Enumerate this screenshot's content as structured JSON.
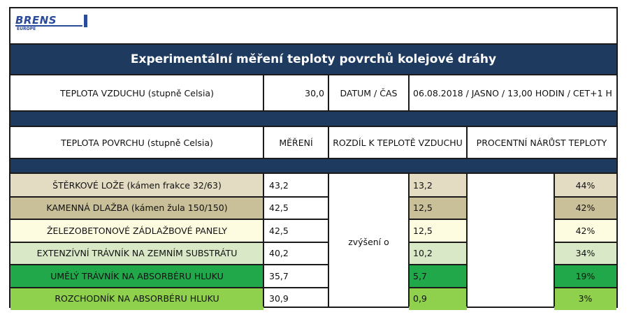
{
  "logo": {
    "brand": "BRENS",
    "sub": "EUROPE"
  },
  "title": "Experimentální měření teploty povrchů kolejové dráhy",
  "info": {
    "air_label": "TEPLOTA VZDUCHU (stupně Celsia)",
    "air_value": "30,0",
    "date_label": "DATUM / ČAS",
    "date_value": "06.08.2018 / JASNO / 13,00 HODIN / CET+1 H"
  },
  "headers": {
    "surface": "TEPLOTA POVRCHU (stupně Celsia)",
    "measure": "MĚŘENÍ",
    "diff": "ROZDÍL K TEPLOTĚ VZDUCHU",
    "percent": "PROCENTNÍ NÁRŮST TEPLOTY"
  },
  "increase_label": "zvýšení o",
  "colors": {
    "navy": "#1e3a5f",
    "row_colors": [
      "#e3dcc2",
      "#c9bf98",
      "#fdfbe0",
      "#d9e8c6",
      "#21a84a",
      "#8fd04c"
    ]
  },
  "rows": [
    {
      "surface": "ŠTĚRKOVÉ LOŽE (kámen frakce 32/63)",
      "measure": "43,2",
      "diff": "13,2",
      "percent": "44%"
    },
    {
      "surface": "KAMENNÁ DLAŽBA (kámen žula 150/150)",
      "measure": "42,5",
      "diff": "12,5",
      "percent": "42%"
    },
    {
      "surface": "ŽELEZOBETONOVÉ ZÁDLAŽBOVÉ PANELY",
      "measure": "42,5",
      "diff": "12,5",
      "percent": "42%"
    },
    {
      "surface": "EXTENZÍVNÍ TRÁVNÍK NA ZEMNÍM SUBSTRÁTU",
      "measure": "40,2",
      "diff": "10,2",
      "percent": "34%"
    },
    {
      "surface": "UMĚLÝ TRÁVNÍK NA ABSORBÉRU HLUKU",
      "measure": "35,7",
      "diff": "5,7",
      "percent": "19%"
    },
    {
      "surface": "ROZCHODNÍK NA ABSORBÉRU HLUKU",
      "measure": "30,9",
      "diff": "0,9",
      "percent": "3%"
    }
  ]
}
